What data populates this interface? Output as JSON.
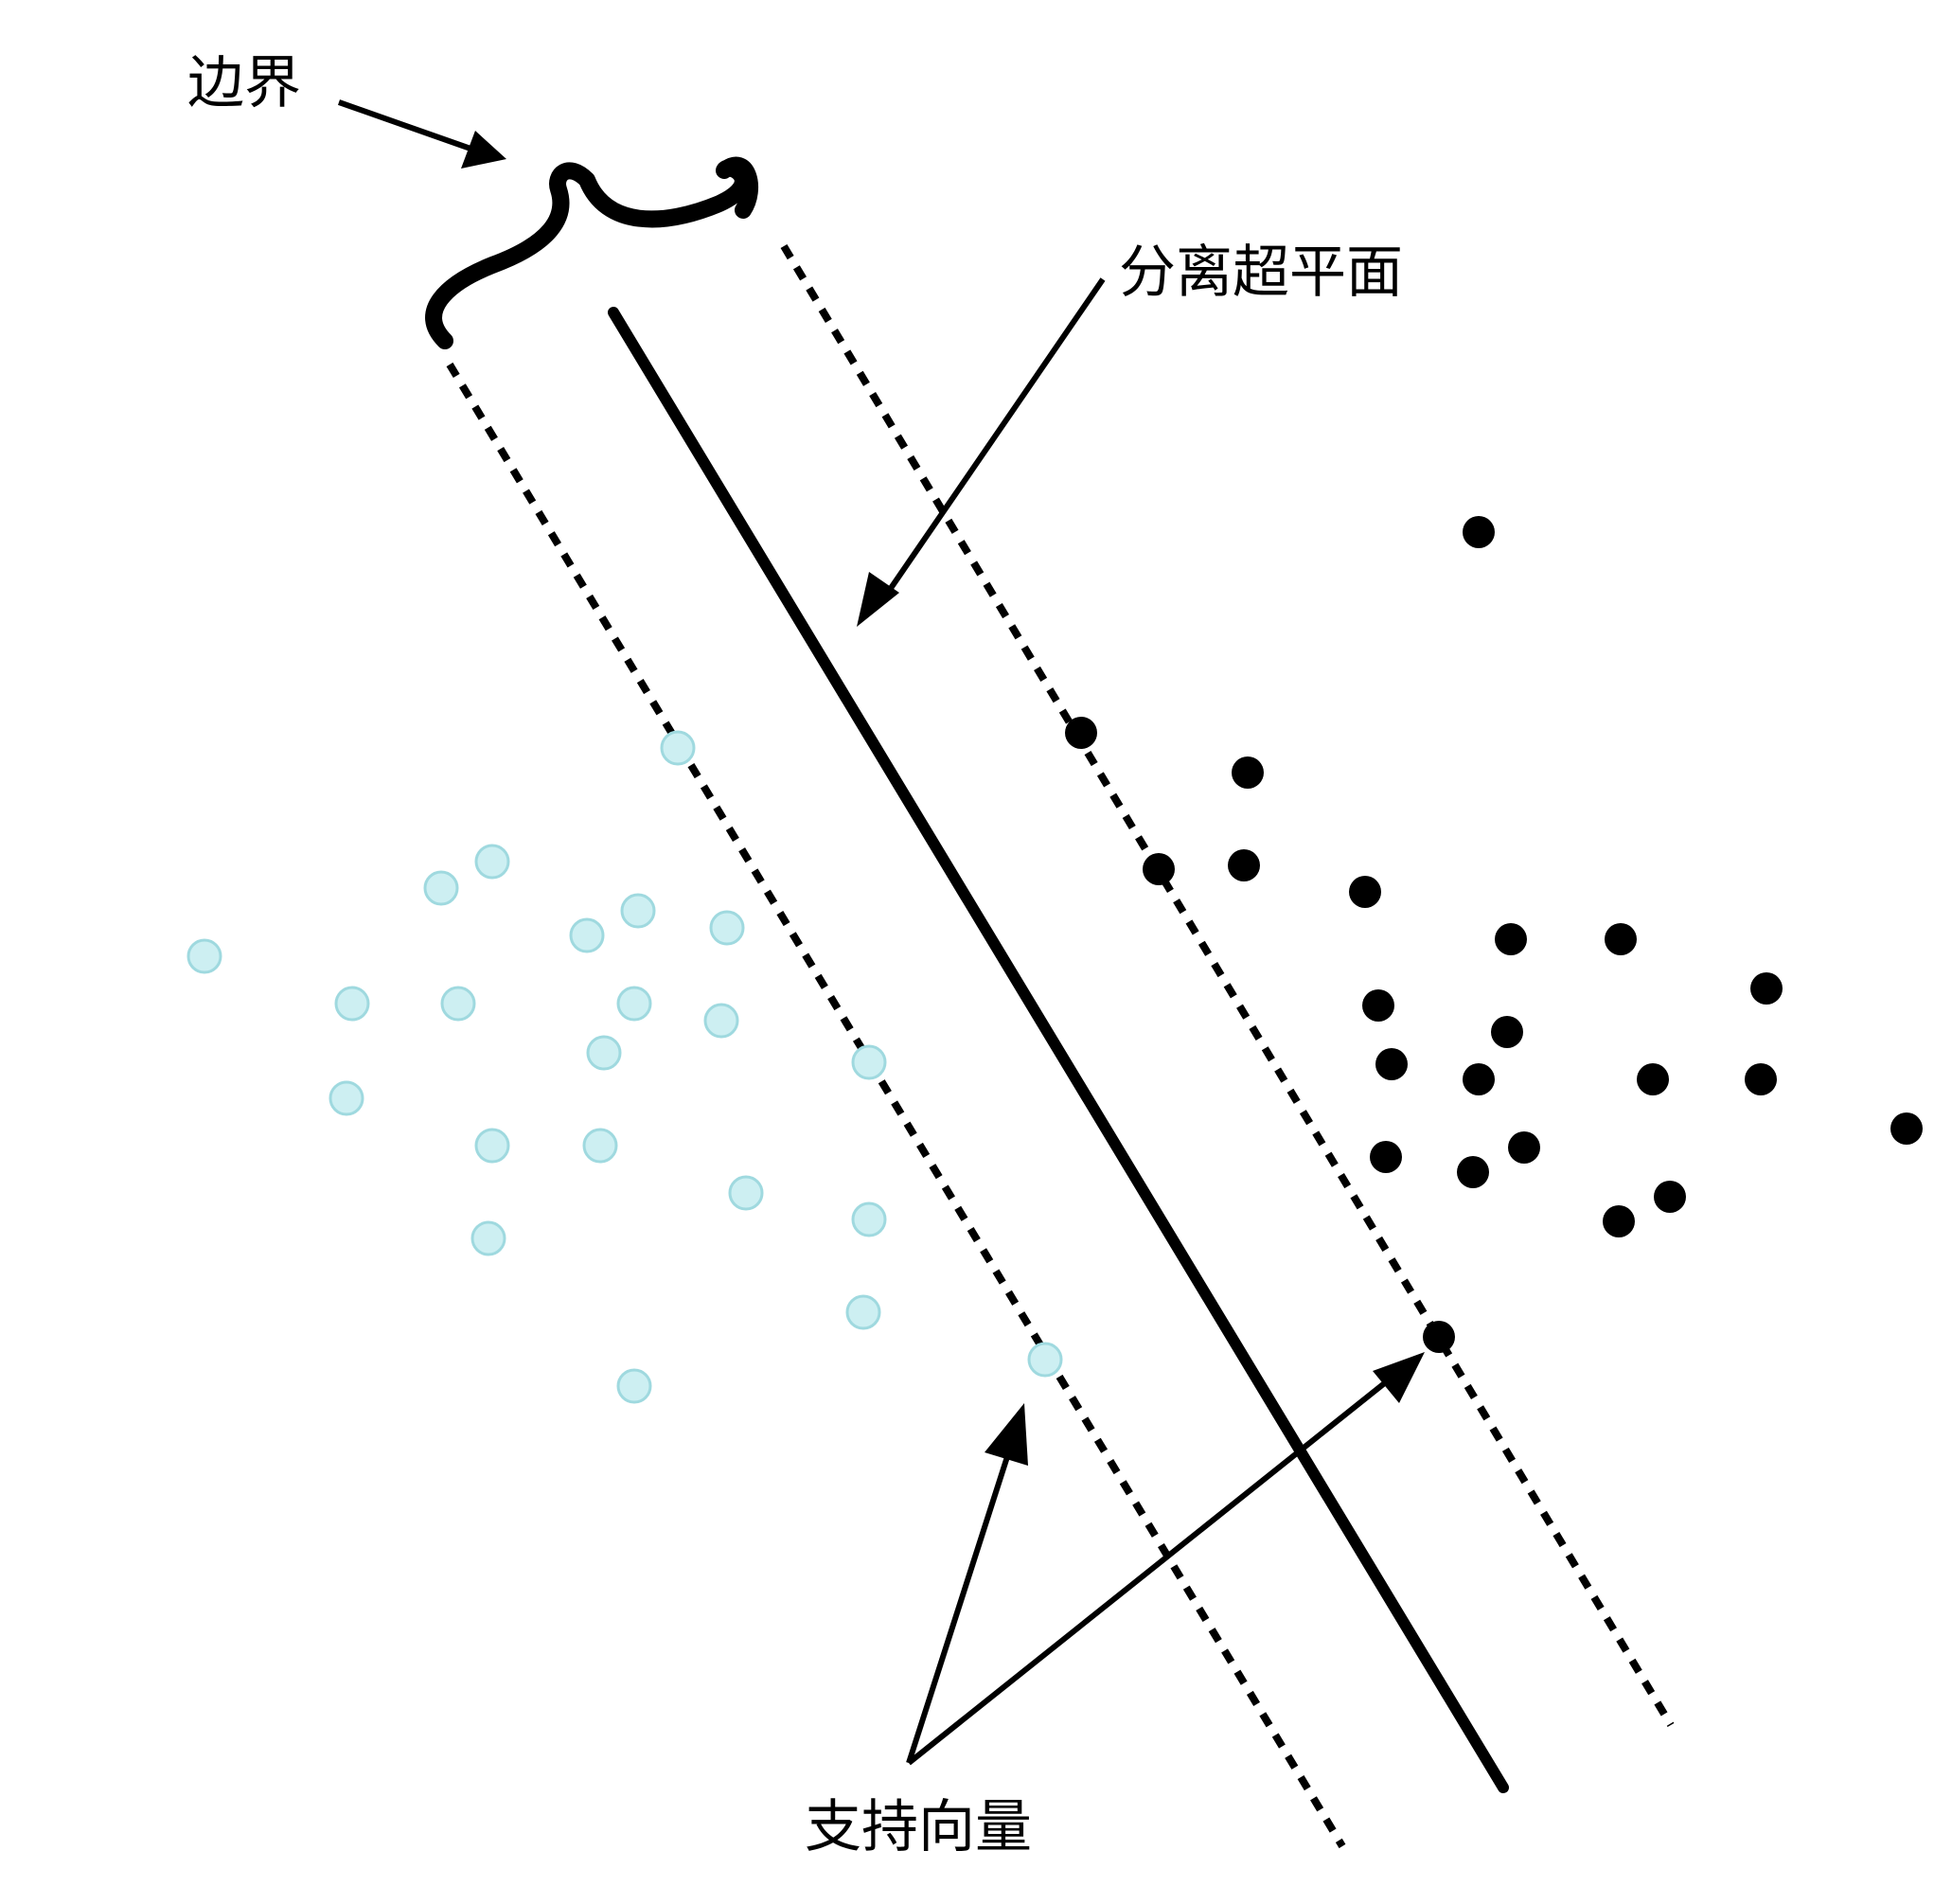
{
  "labels": {
    "margin": "边界",
    "hyperplane": "分离超平面",
    "support_vectors": "支持向量"
  },
  "colors": {
    "class_a_fill": "#cdeff2",
    "class_a_stroke": "#9fd9df",
    "class_b": "#000000",
    "line": "#000000",
    "background": "#ffffff"
  }
}
